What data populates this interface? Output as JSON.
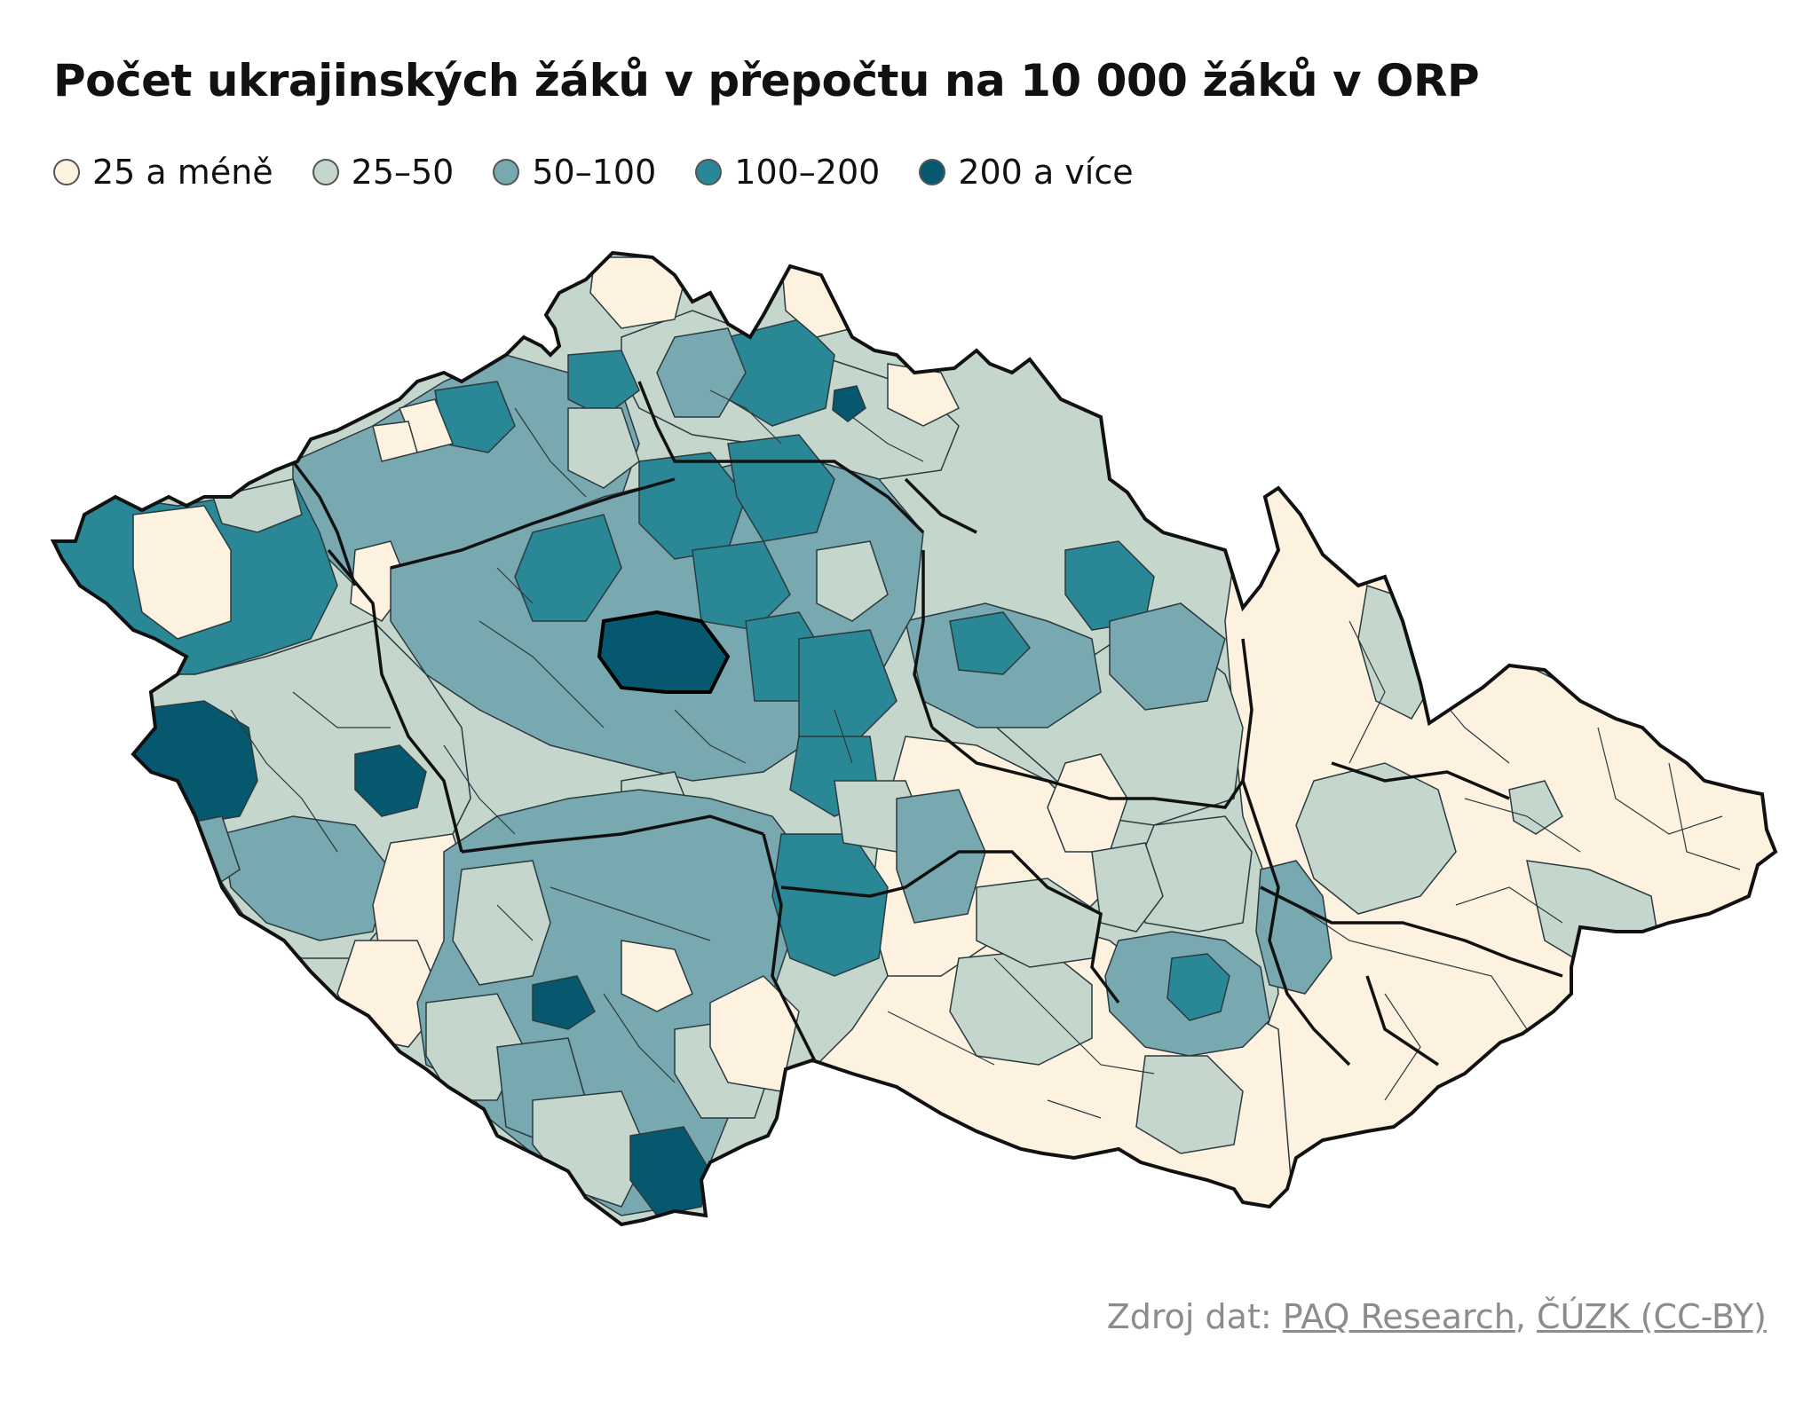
{
  "title": "Počet ukrajinských žáků v přepočtu na 10 000 žáků v ORP",
  "legend": [
    {
      "label": "25 a méně",
      "color": "#fdf1df"
    },
    {
      "label": "25–50",
      "color": "#c5d6cd"
    },
    {
      "label": "50–100",
      "color": "#78a8b0"
    },
    {
      "label": "100–200",
      "color": "#2a8896"
    },
    {
      "label": "200 a více",
      "color": "#06586e"
    }
  ],
  "source": {
    "prefix": "Zdroj dat: ",
    "link1": "PAQ Research",
    "separator": ", ",
    "link2": "ČÚZK (CC-BY)"
  }
}
